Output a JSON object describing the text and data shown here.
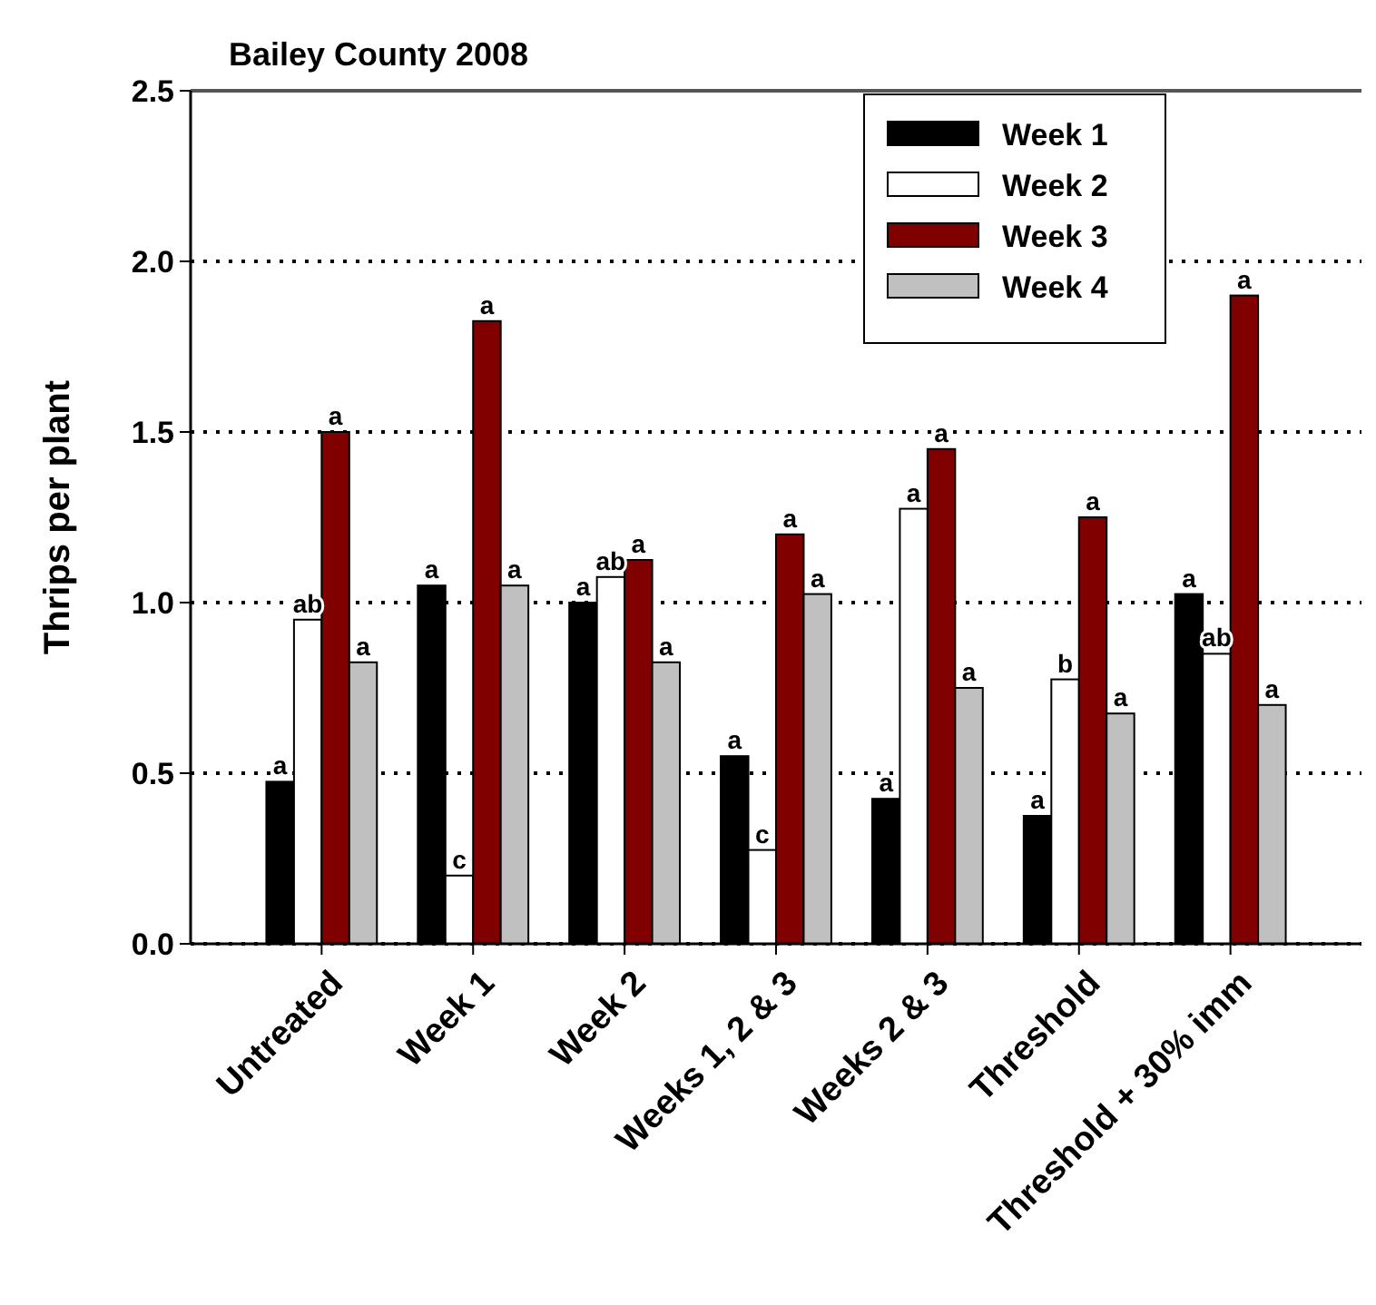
{
  "chart_data": {
    "type": "bar",
    "title": "Bailey County 2008",
    "ylabel": "Thrips per plant",
    "categories": [
      "Untreated",
      "Week 1",
      "Week 2",
      "Weeks 1, 2 & 3",
      "Weeks 2 & 3",
      "Threshold",
      "Threshold + 30% imm"
    ],
    "series": [
      {
        "name": "Week 1",
        "color": "#000000",
        "values": [
          0.475,
          1.05,
          1.0,
          0.55,
          0.425,
          0.375,
          1.025
        ],
        "value_labels": [
          "a",
          "a",
          "a",
          "a",
          "a",
          "a",
          "a"
        ]
      },
      {
        "name": "Week 2",
        "color": "#ffffff",
        "values": [
          0.95,
          0.2,
          1.075,
          0.275,
          1.275,
          0.775,
          0.85
        ],
        "value_labels": [
          "ab",
          "c",
          "ab",
          "c",
          "a",
          "b",
          "ab"
        ]
      },
      {
        "name": "Week 3",
        "color": "#800000",
        "values": [
          1.5,
          1.825,
          1.125,
          1.2,
          1.45,
          1.25,
          1.9
        ],
        "value_labels": [
          "a",
          "a",
          "a",
          "a",
          "a",
          "a",
          "a"
        ]
      },
      {
        "name": "Week 4",
        "color": "#c0c0c0",
        "values": [
          0.825,
          1.05,
          0.825,
          1.025,
          0.75,
          0.675,
          0.7
        ],
        "value_labels": [
          "a",
          "a",
          "a",
          "a",
          "a",
          "a",
          "a"
        ]
      }
    ],
    "ylim": [
      0,
      2.5
    ],
    "yticks": [
      {
        "value": 0,
        "label": "0.0"
      },
      0.5,
      {
        "value": 1,
        "label": "1.0"
      },
      1.5,
      {
        "value": 2,
        "label": "2.0"
      },
      2.5
    ],
    "grid": "y",
    "legend": "top right"
  }
}
